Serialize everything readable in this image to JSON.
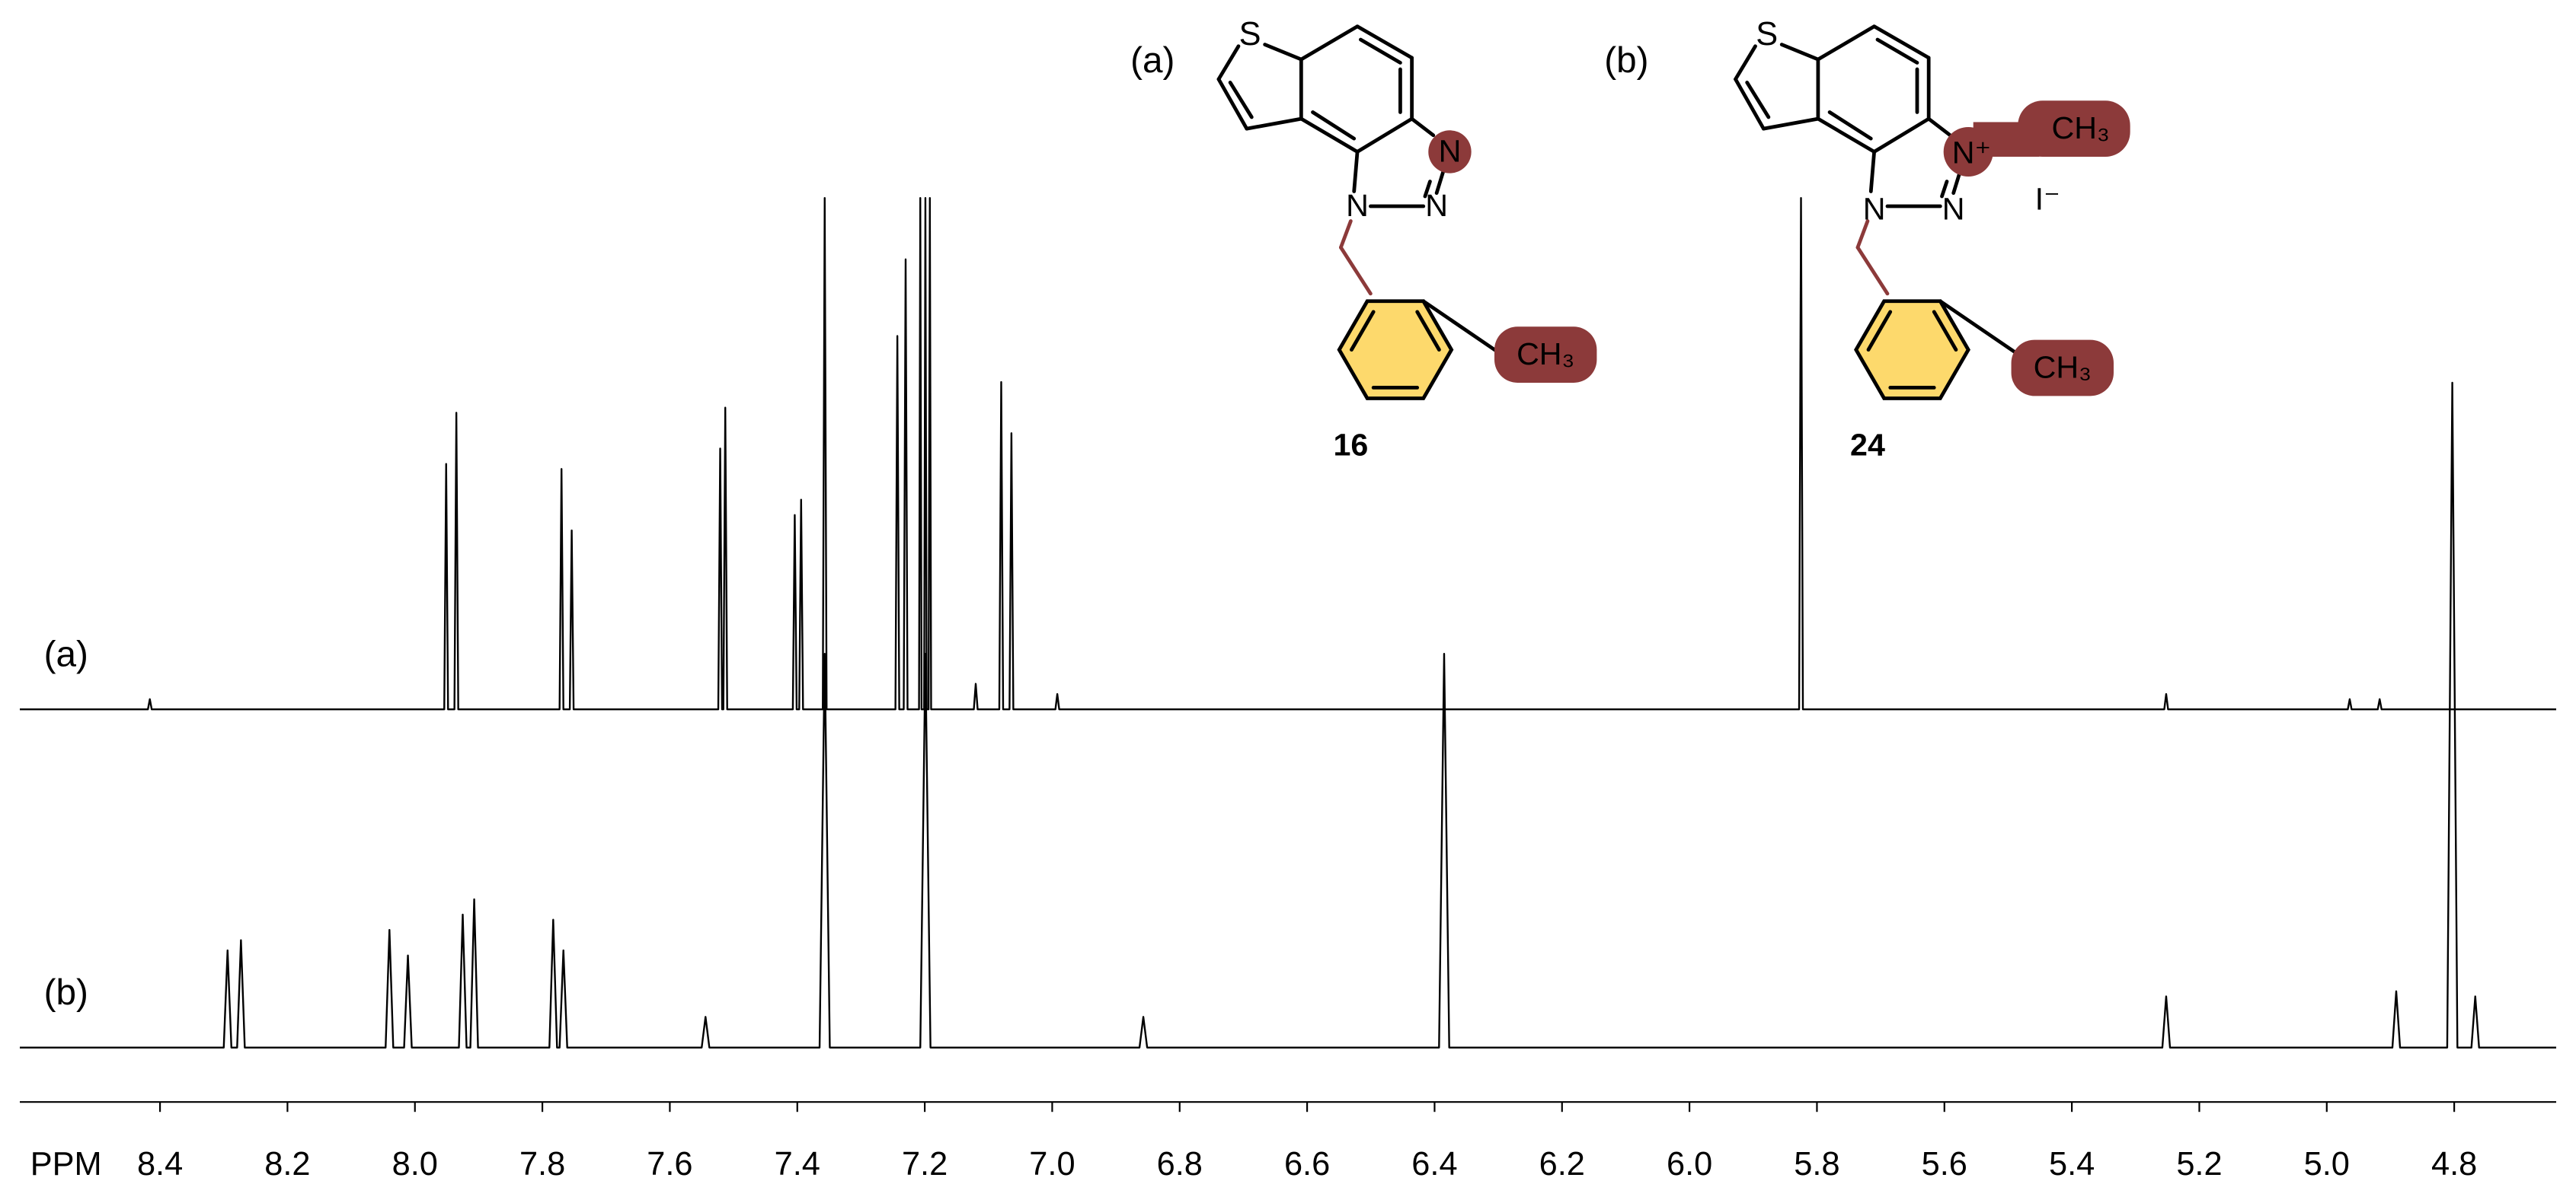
{
  "chart_data": {
    "type": "line",
    "xlabel": "PPM",
    "xlim": [
      8.62,
      4.64
    ],
    "xticks": [
      8.4,
      8.2,
      {
        "value": 8,
        "label": "8.0"
      },
      7.8,
      7.6,
      7.4,
      7.2,
      {
        "value": 7,
        "label": "7.0"
      },
      6.8,
      6.6,
      6.4,
      6.2,
      {
        "value": 6,
        "label": "6.0"
      },
      5.8,
      5.6,
      5.4,
      5.2,
      {
        "value": 5,
        "label": "5.0"
      },
      4.8
    ],
    "series": [
      {
        "name": "(a)",
        "color": "#000000",
        "x": [
          8.62,
          8.419,
          8.416,
          8.413,
          7.954,
          7.951,
          7.948,
          7.938,
          7.935,
          7.932,
          7.773,
          7.77,
          7.767,
          7.757,
          7.754,
          7.751,
          7.524,
          7.521,
          7.518,
          7.516,
          7.513,
          7.51,
          7.407,
          7.404,
          7.401,
          7.397,
          7.394,
          7.391,
          7.36,
          7.357,
          7.354,
          7.246,
          7.243,
          7.24,
          7.233,
          7.23,
          7.227,
          7.209,
          7.207,
          7.205,
          7.201,
          7.199,
          7.197,
          7.194,
          7.192,
          7.19,
          7.123,
          7.12,
          7.117,
          7.083,
          7.08,
          7.077,
          7.067,
          7.064,
          7.061,
          6.995,
          6.992,
          6.989,
          5.828,
          5.825,
          5.822,
          5.255,
          5.252,
          5.249,
          4.967,
          4.964,
          4.961,
          4.92,
          4.917,
          4.914,
          4.64
        ],
        "values": [
          0,
          0,
          2,
          0,
          0,
          48,
          0,
          0,
          58,
          0,
          0,
          47,
          0,
          0,
          35,
          0,
          0,
          51,
          0,
          0,
          59,
          0,
          0,
          38,
          0,
          0,
          41,
          0,
          0,
          100,
          0,
          0,
          73,
          0,
          0,
          88,
          0,
          0,
          100,
          0,
          0,
          100,
          0,
          0,
          100,
          0,
          0,
          5,
          0,
          0,
          64,
          0,
          0,
          54,
          0,
          0,
          3,
          0,
          0,
          100,
          0,
          0,
          3,
          0,
          0,
          2,
          0,
          0,
          2,
          0,
          0
        ]
      },
      {
        "name": "(b)",
        "color": "#000000",
        "x": [
          8.62,
          8.3,
          8.294,
          8.288,
          8.279,
          8.273,
          8.267,
          8.046,
          8.04,
          8.034,
          8.017,
          8.011,
          8.005,
          7.931,
          7.925,
          7.919,
          7.913,
          7.907,
          7.901,
          7.789,
          7.783,
          7.777,
          7.773,
          7.767,
          7.761,
          7.55,
          7.544,
          7.538,
          7.365,
          7.357,
          7.349,
          7.207,
          7.199,
          7.191,
          6.863,
          6.857,
          6.851,
          6.393,
          6.385,
          6.377,
          5.258,
          5.252,
          5.246,
          4.897,
          4.891,
          4.885,
          4.811,
          4.803,
          4.795,
          4.773,
          4.767,
          4.761,
          4.64
        ],
        "values": [
          0,
          0,
          19,
          0,
          0,
          21,
          0,
          0,
          23,
          0,
          0,
          18,
          0,
          0,
          26,
          0,
          0,
          29,
          0,
          0,
          25,
          0,
          0,
          19,
          0,
          0,
          6,
          0,
          0,
          77,
          0,
          0,
          77,
          0,
          0,
          6,
          0,
          0,
          77,
          0,
          0,
          10,
          0,
          0,
          11,
          0,
          0,
          130,
          0,
          0,
          10,
          0,
          0
        ]
      }
    ],
    "structures": [
      {
        "label": "(a)",
        "compound": "16",
        "atoms": [
          "S",
          "N",
          "N",
          "N",
          "CH₃"
        ]
      },
      {
        "label": "(b)",
        "compound": "24",
        "atoms": [
          "S",
          "N⁺",
          "N",
          "N",
          "CH₃",
          "CH₃",
          "I⁻"
        ]
      }
    ]
  }
}
